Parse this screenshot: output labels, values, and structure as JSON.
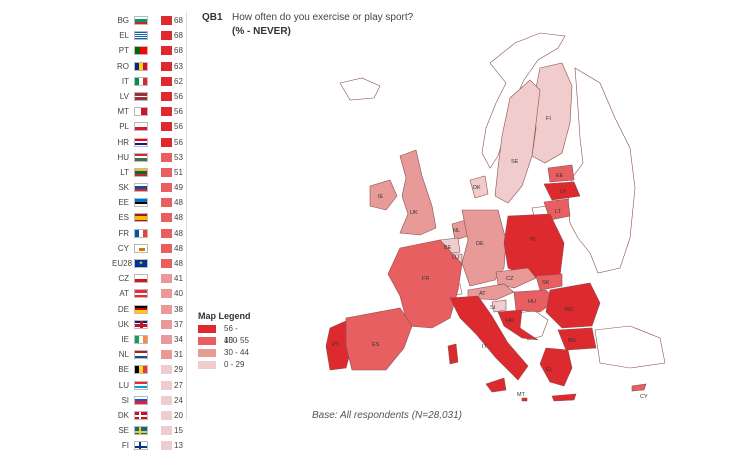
{
  "question": {
    "code": "QB1",
    "text": "How often do you exercise or play sport?",
    "subtitle": "(% - NEVER)"
  },
  "colors": {
    "band_56_100": "#dd2a2e",
    "band_45_55": "#e85f61",
    "band_30_44": "#e79a98",
    "band_0_29": "#f1cccc",
    "non_eu": "#ffffff",
    "border": "#8a5050"
  },
  "ranking": [
    {
      "code": "BG",
      "value": "68",
      "flag": "bg",
      "band": "band_56_100"
    },
    {
      "code": "EL",
      "value": "68",
      "flag": "el",
      "band": "band_56_100"
    },
    {
      "code": "PT",
      "value": "68",
      "flag": "pt",
      "band": "band_56_100"
    },
    {
      "code": "RO",
      "value": "63",
      "flag": "ro",
      "band": "band_56_100"
    },
    {
      "code": "IT",
      "value": "62",
      "flag": "it",
      "band": "band_56_100"
    },
    {
      "code": "LV",
      "value": "56",
      "flag": "lv",
      "band": "band_56_100"
    },
    {
      "code": "MT",
      "value": "56",
      "flag": "mt",
      "band": "band_56_100"
    },
    {
      "code": "PL",
      "value": "56",
      "flag": "pl",
      "band": "band_56_100"
    },
    {
      "code": "HR",
      "value": "56",
      "flag": "hr",
      "band": "band_56_100"
    },
    {
      "code": "HU",
      "value": "53",
      "flag": "hu",
      "band": "band_45_55"
    },
    {
      "code": "LT",
      "value": "51",
      "flag": "lt",
      "band": "band_45_55"
    },
    {
      "code": "SK",
      "value": "49",
      "flag": "sk",
      "band": "band_45_55"
    },
    {
      "code": "EE",
      "value": "48",
      "flag": "ee",
      "band": "band_45_55"
    },
    {
      "code": "ES",
      "value": "48",
      "flag": "es",
      "band": "band_45_55"
    },
    {
      "code": "FR",
      "value": "48",
      "flag": "fr",
      "band": "band_45_55"
    },
    {
      "code": "CY",
      "value": "48",
      "flag": "cy",
      "band": "band_45_55"
    },
    {
      "code": "EU28",
      "value": "48",
      "flag": "eu",
      "band": "band_45_55"
    },
    {
      "code": "CZ",
      "value": "41",
      "flag": "cz",
      "band": "band_30_44"
    },
    {
      "code": "AT",
      "value": "40",
      "flag": "at",
      "band": "band_30_44"
    },
    {
      "code": "DE",
      "value": "38",
      "flag": "de",
      "band": "band_30_44"
    },
    {
      "code": "UK",
      "value": "37",
      "flag": "uk",
      "band": "band_30_44"
    },
    {
      "code": "IE",
      "value": "34",
      "flag": "ie",
      "band": "band_30_44"
    },
    {
      "code": "NL",
      "value": "31",
      "flag": "nl",
      "band": "band_30_44"
    },
    {
      "code": "BE",
      "value": "29",
      "flag": "be",
      "band": "band_0_29"
    },
    {
      "code": "LU",
      "value": "27",
      "flag": "lu",
      "band": "band_0_29"
    },
    {
      "code": "SI",
      "value": "24",
      "flag": "si",
      "band": "band_0_29"
    },
    {
      "code": "DK",
      "value": "20",
      "flag": "dk",
      "band": "band_0_29"
    },
    {
      "code": "SE",
      "value": "15",
      "flag": "se",
      "band": "band_0_29"
    },
    {
      "code": "FI",
      "value": "13",
      "flag": "fi",
      "band": "band_0_29"
    }
  ],
  "legend": {
    "title": "Map Legend",
    "items": [
      {
        "label": "56 - 100",
        "band": "band_56_100"
      },
      {
        "label": "45 - 55",
        "band": "band_45_55"
      },
      {
        "label": "30 - 44",
        "band": "band_30_44"
      },
      {
        "label": "0 - 29",
        "band": "band_0_29"
      }
    ]
  },
  "map_labels": [
    "FI",
    "SE",
    "EE",
    "LV",
    "LT",
    "DK",
    "IE",
    "UK",
    "NL",
    "BE",
    "DE",
    "PL",
    "LU",
    "CZ",
    "SK",
    "FR",
    "AT",
    "HU",
    "SI",
    "HR",
    "RO",
    "PT",
    "ES",
    "IT",
    "BG",
    "EL",
    "MT",
    "CY"
  ],
  "base_note": "Base: All respondents (N=28,031)"
}
